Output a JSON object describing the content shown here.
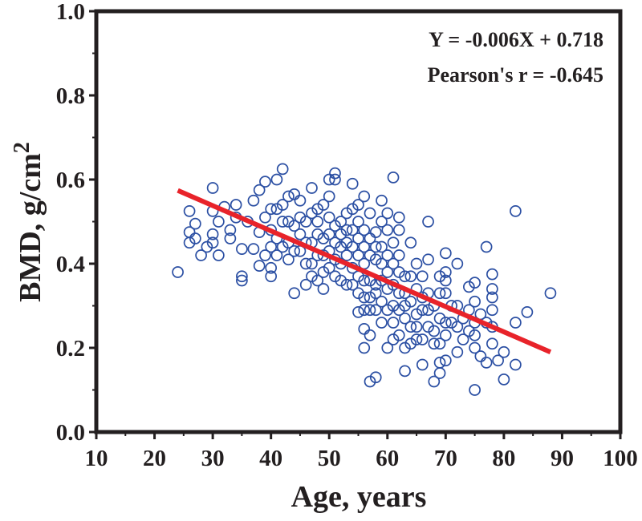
{
  "chart_data": {
    "type": "scatter",
    "xlabel": "Age, years",
    "ylabel": "BMD, g/cm",
    "ylabel_sup": "2",
    "xlim": [
      10,
      100
    ],
    "ylim": [
      0.0,
      1.0
    ],
    "xticks": [
      "10",
      "20",
      "30",
      "40",
      "50",
      "60",
      "70",
      "80",
      "90",
      "100"
    ],
    "yticks": [
      "0.0",
      "0.2",
      "0.4",
      "0.6",
      "0.8",
      "1.0"
    ],
    "grid": false,
    "annotations": [
      "Y = -0.006X + 0.718",
      "Pearson's r = -0.645"
    ],
    "fit": {
      "slope": -0.006,
      "intercept": 0.718,
      "x_range": [
        24,
        88
      ]
    },
    "colors": {
      "points": "#2b4fa3",
      "fit_line": "#e8232a",
      "axes": "#231f20"
    },
    "points": [
      [
        24,
        0.38
      ],
      [
        26,
        0.525
      ],
      [
        26,
        0.475
      ],
      [
        26,
        0.45
      ],
      [
        27,
        0.495
      ],
      [
        27,
        0.46
      ],
      [
        28,
        0.42
      ],
      [
        29,
        0.44
      ],
      [
        30,
        0.58
      ],
      [
        30,
        0.45
      ],
      [
        30,
        0.47
      ],
      [
        30,
        0.525
      ],
      [
        31,
        0.42
      ],
      [
        31,
        0.5
      ],
      [
        32,
        0.535
      ],
      [
        33,
        0.48
      ],
      [
        33,
        0.46
      ],
      [
        34,
        0.54
      ],
      [
        34,
        0.51
      ],
      [
        35,
        0.37
      ],
      [
        35,
        0.36
      ],
      [
        35,
        0.435
      ],
      [
        36,
        0.5
      ],
      [
        37,
        0.55
      ],
      [
        37,
        0.435
      ],
      [
        38,
        0.575
      ],
      [
        38,
        0.395
      ],
      [
        38,
        0.475
      ],
      [
        39,
        0.595
      ],
      [
        39,
        0.42
      ],
      [
        39,
        0.51
      ],
      [
        40,
        0.37
      ],
      [
        40,
        0.39
      ],
      [
        40,
        0.44
      ],
      [
        40,
        0.48
      ],
      [
        40,
        0.53
      ],
      [
        41,
        0.6
      ],
      [
        41,
        0.53
      ],
      [
        41,
        0.46
      ],
      [
        41,
        0.42
      ],
      [
        42,
        0.625
      ],
      [
        42,
        0.54
      ],
      [
        42,
        0.5
      ],
      [
        42,
        0.44
      ],
      [
        43,
        0.56
      ],
      [
        43,
        0.41
      ],
      [
        43,
        0.45
      ],
      [
        43,
        0.5
      ],
      [
        44,
        0.33
      ],
      [
        44,
        0.565
      ],
      [
        44,
        0.49
      ],
      [
        44,
        0.43
      ],
      [
        45,
        0.55
      ],
      [
        45,
        0.43
      ],
      [
        45,
        0.47
      ],
      [
        45,
        0.51
      ],
      [
        46,
        0.35
      ],
      [
        46,
        0.5
      ],
      [
        46,
        0.45
      ],
      [
        46,
        0.4
      ],
      [
        47,
        0.58
      ],
      [
        47,
        0.4
      ],
      [
        47,
        0.45
      ],
      [
        47,
        0.52
      ],
      [
        47,
        0.37
      ],
      [
        48,
        0.5
      ],
      [
        48,
        0.36
      ],
      [
        48,
        0.42
      ],
      [
        48,
        0.47
      ],
      [
        48,
        0.53
      ],
      [
        49,
        0.34
      ],
      [
        49,
        0.38
      ],
      [
        49,
        0.54
      ],
      [
        49,
        0.46
      ],
      [
        49,
        0.42
      ],
      [
        50,
        0.6
      ],
      [
        50,
        0.56
      ],
      [
        50,
        0.47
      ],
      [
        50,
        0.43
      ],
      [
        50,
        0.39
      ],
      [
        50,
        0.51
      ],
      [
        51,
        0.615
      ],
      [
        51,
        0.6
      ],
      [
        51,
        0.37
      ],
      [
        51,
        0.45
      ],
      [
        51,
        0.41
      ],
      [
        51,
        0.49
      ],
      [
        52,
        0.5
      ],
      [
        52,
        0.4
      ],
      [
        52,
        0.44
      ],
      [
        52,
        0.47
      ],
      [
        52,
        0.36
      ],
      [
        53,
        0.48
      ],
      [
        53,
        0.35
      ],
      [
        53,
        0.42
      ],
      [
        53,
        0.52
      ],
      [
        53,
        0.45
      ],
      [
        54,
        0.59
      ],
      [
        54,
        0.53
      ],
      [
        54,
        0.44
      ],
      [
        54,
        0.39
      ],
      [
        54,
        0.48
      ],
      [
        54,
        0.35
      ],
      [
        55,
        0.285
      ],
      [
        55,
        0.42
      ],
      [
        55,
        0.5
      ],
      [
        55,
        0.46
      ],
      [
        55,
        0.37
      ],
      [
        55,
        0.33
      ],
      [
        55,
        0.54
      ],
      [
        56,
        0.245
      ],
      [
        56,
        0.2
      ],
      [
        56,
        0.56
      ],
      [
        56,
        0.32
      ],
      [
        56,
        0.4
      ],
      [
        56,
        0.44
      ],
      [
        56,
        0.48
      ],
      [
        56,
        0.36
      ],
      [
        56,
        0.29
      ],
      [
        57,
        0.23
      ],
      [
        57,
        0.12
      ],
      [
        57,
        0.52
      ],
      [
        57,
        0.36
      ],
      [
        57,
        0.42
      ],
      [
        57,
        0.46
      ],
      [
        57,
        0.32
      ],
      [
        57,
        0.29
      ],
      [
        58,
        0.13
      ],
      [
        58,
        0.29
      ],
      [
        58,
        0.475
      ],
      [
        58,
        0.35
      ],
      [
        58,
        0.41
      ],
      [
        58,
        0.44
      ],
      [
        58,
        0.33
      ],
      [
        59,
        0.55
      ],
      [
        59,
        0.26
      ],
      [
        59,
        0.4
      ],
      [
        59,
        0.36
      ],
      [
        59,
        0.44
      ],
      [
        59,
        0.31
      ],
      [
        59,
        0.5
      ],
      [
        60,
        0.2
      ],
      [
        60,
        0.52
      ],
      [
        60,
        0.34
      ],
      [
        60,
        0.38
      ],
      [
        60,
        0.42
      ],
      [
        60,
        0.48
      ],
      [
        60,
        0.29
      ],
      [
        61,
        0.605
      ],
      [
        61,
        0.3
      ],
      [
        61,
        0.45
      ],
      [
        61,
        0.35
      ],
      [
        61,
        0.4
      ],
      [
        61,
        0.26
      ],
      [
        61,
        0.22
      ],
      [
        62,
        0.51
      ],
      [
        62,
        0.23
      ],
      [
        62,
        0.38
      ],
      [
        62,
        0.33
      ],
      [
        62,
        0.42
      ],
      [
        62,
        0.48
      ],
      [
        62,
        0.29
      ],
      [
        63,
        0.145
      ],
      [
        63,
        0.2
      ],
      [
        63,
        0.33
      ],
      [
        63,
        0.37
      ],
      [
        63,
        0.27
      ],
      [
        63,
        0.3
      ],
      [
        64,
        0.45
      ],
      [
        64,
        0.25
      ],
      [
        64,
        0.37
      ],
      [
        64,
        0.31
      ],
      [
        64,
        0.21
      ],
      [
        65,
        0.4
      ],
      [
        65,
        0.22
      ],
      [
        65,
        0.34
      ],
      [
        65,
        0.28
      ],
      [
        65,
        0.25
      ],
      [
        66,
        0.16
      ],
      [
        66,
        0.29
      ],
      [
        66,
        0.37
      ],
      [
        66,
        0.32
      ],
      [
        66,
        0.22
      ],
      [
        67,
        0.5
      ],
      [
        67,
        0.41
      ],
      [
        67,
        0.25
      ],
      [
        67,
        0.33
      ],
      [
        67,
        0.29
      ],
      [
        68,
        0.12
      ],
      [
        68,
        0.21
      ],
      [
        68,
        0.3
      ],
      [
        68,
        0.24
      ],
      [
        69,
        0.37
      ],
      [
        69,
        0.14
      ],
      [
        69,
        0.165
      ],
      [
        69,
        0.33
      ],
      [
        69,
        0.27
      ],
      [
        69,
        0.21
      ],
      [
        70,
        0.425
      ],
      [
        70,
        0.38
      ],
      [
        70,
        0.17
      ],
      [
        70,
        0.26
      ],
      [
        70,
        0.33
      ],
      [
        70,
        0.36
      ],
      [
        70,
        0.23
      ],
      [
        71,
        0.3
      ],
      [
        71,
        0.26
      ],
      [
        72,
        0.4
      ],
      [
        72,
        0.19
      ],
      [
        72,
        0.25
      ],
      [
        72,
        0.3
      ],
      [
        73,
        0.22
      ],
      [
        73,
        0.27
      ],
      [
        74,
        0.345
      ],
      [
        74,
        0.29
      ],
      [
        74,
        0.24
      ],
      [
        75,
        0.1
      ],
      [
        75,
        0.355
      ],
      [
        75,
        0.2
      ],
      [
        75,
        0.31
      ],
      [
        75,
        0.26
      ],
      [
        75,
        0.23
      ],
      [
        76,
        0.18
      ],
      [
        76,
        0.28
      ],
      [
        77,
        0.44
      ],
      [
        77,
        0.165
      ],
      [
        77,
        0.26
      ],
      [
        78,
        0.375
      ],
      [
        78,
        0.34
      ],
      [
        78,
        0.29
      ],
      [
        78,
        0.21
      ],
      [
        78,
        0.25
      ],
      [
        78,
        0.32
      ],
      [
        79,
        0.17
      ],
      [
        80,
        0.19
      ],
      [
        80,
        0.125
      ],
      [
        82,
        0.525
      ],
      [
        82,
        0.16
      ],
      [
        82,
        0.26
      ],
      [
        84,
        0.285
      ],
      [
        88,
        0.33
      ]
    ]
  }
}
